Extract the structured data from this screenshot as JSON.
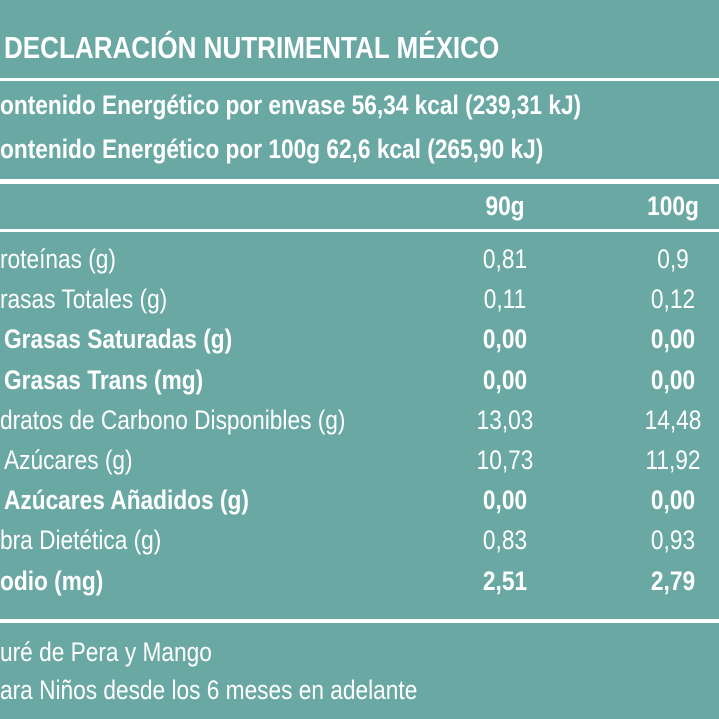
{
  "header": {
    "title": "DECLARACIÓN NUTRIMENTAL MÉXICO",
    "energy": [
      "ontenido Energético por envase 56,34 kcal (239,31 kJ)",
      "ontenido Energético por 100g 62,6 kcal (265,90 kJ)"
    ]
  },
  "table": {
    "columns": [
      "90g",
      "100g"
    ],
    "rows": [
      [
        "roteínas (g)",
        "0,81",
        "0,9"
      ],
      [
        "rasas Totales (g)",
        "0,11",
        "0,12"
      ],
      [
        "Grasas Saturadas (g)",
        "0,00",
        "0,00"
      ],
      [
        "Grasas Trans (mg)",
        "0,00",
        "0,00"
      ],
      [
        "dratos de Carbono Disponibles (g)",
        "13,03",
        "14,48"
      ],
      [
        "Azúcares (g)",
        "10,73",
        "11,92"
      ],
      [
        "Azúcares Añadidos (g)",
        "0,00",
        "0,00"
      ],
      [
        "bra Dietética (g)",
        "0,83",
        "0,93"
      ],
      [
        "odio (mg)",
        "2,51",
        "2,79"
      ]
    ]
  },
  "footer": [
    "uré de Pera y Mango",
    "ara Niños desde los 6 meses en adelante"
  ]
}
